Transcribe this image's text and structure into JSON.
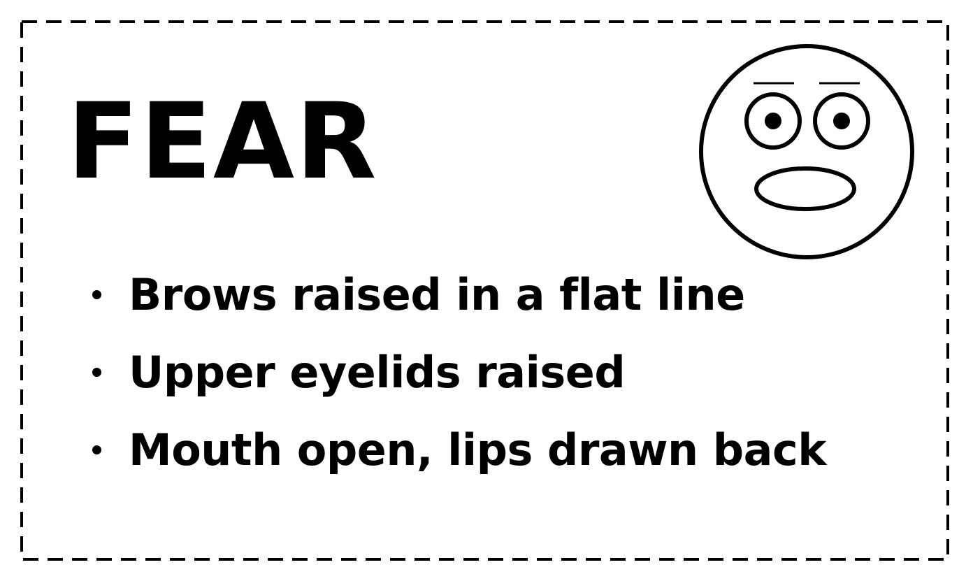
{
  "title": "FEAR",
  "face_icon": "fearful-face-icon",
  "bullets": [
    "Brows raised in a flat line",
    "Upper eyelids raised",
    "Mouth open, lips drawn back"
  ],
  "colors": {
    "ink": "#000000",
    "background": "#ffffff"
  }
}
